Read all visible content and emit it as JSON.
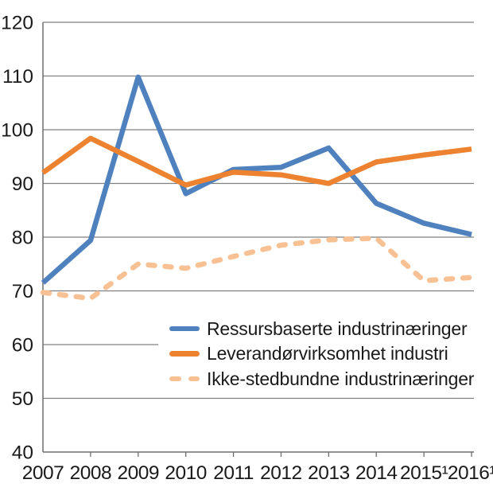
{
  "chart_data": {
    "type": "line",
    "title": "",
    "xlabel": "",
    "ylabel": "",
    "x_tick_labels": [
      "2007",
      "2008",
      "2009",
      "2010",
      "2011",
      "2012",
      "2013",
      "2014",
      "2015¹",
      "2016¹"
    ],
    "y_ticks": [
      40,
      50,
      60,
      70,
      80,
      90,
      100,
      110,
      120
    ],
    "ylim": [
      40,
      120
    ],
    "grid": "horizontal",
    "legend_position": "inside-lower-right",
    "series": [
      {
        "name": "Ressursbaserte industrinæringer",
        "color": "#4E81BD",
        "style": "solid",
        "values": [
          71.5,
          79.4,
          109.8,
          88.1,
          92.6,
          93.0,
          96.6,
          86.3,
          82.6,
          80.5
        ]
      },
      {
        "name": "Leverandørvirksomhet industri",
        "color": "#ED8230",
        "style": "solid",
        "values": [
          92.0,
          98.4,
          94.1,
          89.7,
          92.1,
          91.6,
          90.0,
          94.0,
          95.3,
          96.4
        ]
      },
      {
        "name": "Ikke-stedbundne industrinæringer",
        "color": "#F8C194",
        "style": "dashed",
        "values": [
          69.7,
          68.6,
          75.0,
          74.2,
          76.4,
          78.5,
          79.5,
          79.8,
          71.9,
          72.5
        ]
      }
    ]
  },
  "style": {
    "gridline_color": "#808080",
    "axis_color": "#6E6E6E",
    "tick_label_color": "#1a1a1a"
  }
}
